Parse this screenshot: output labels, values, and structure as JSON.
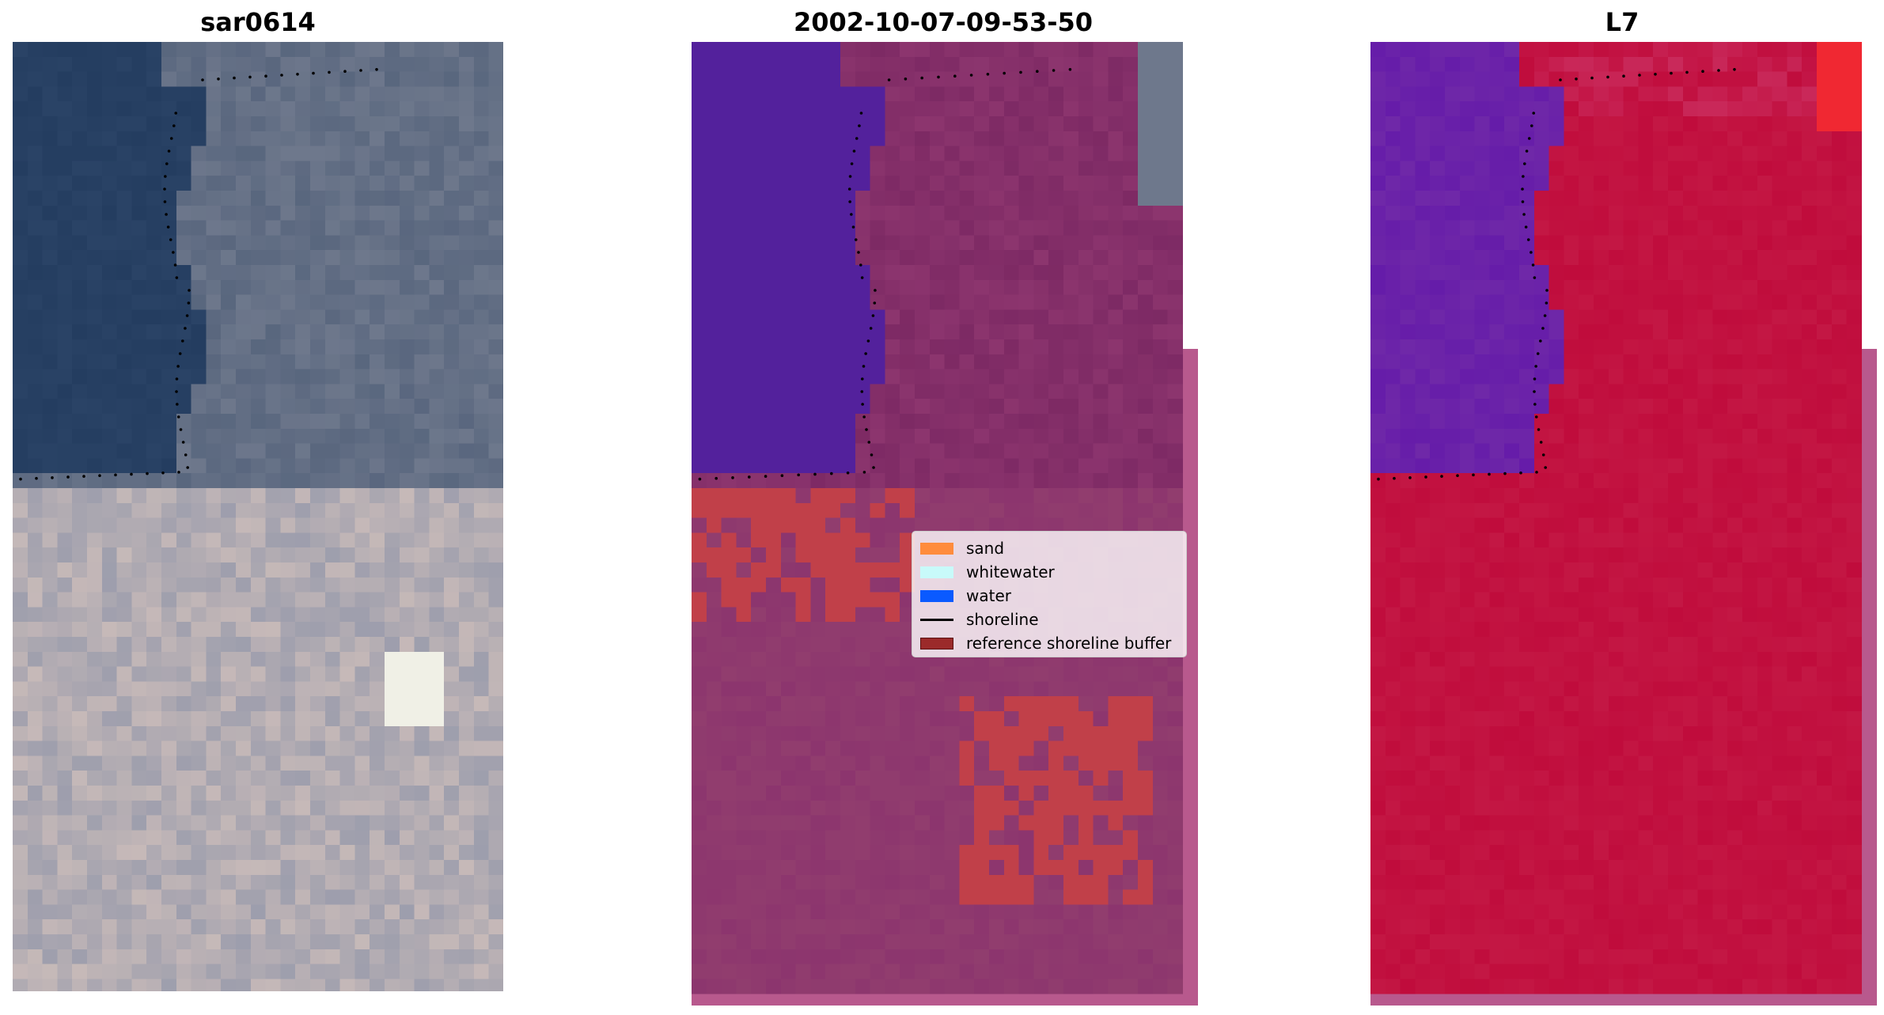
{
  "panels": [
    {
      "title": "sar0614"
    },
    {
      "title": "2002-10-07-09-53-50"
    },
    {
      "title": "L7"
    }
  ],
  "legend": {
    "items": [
      {
        "label": "sand",
        "color": "#ff8c3d"
      },
      {
        "label": "whitewater",
        "color": "#c8fafa"
      },
      {
        "label": "water",
        "color": "#0a5aff"
      },
      {
        "label": "shoreline",
        "color": "#000000"
      },
      {
        "label": "reference shoreline buffer",
        "color": "#9b2a2a"
      }
    ]
  },
  "colors": {
    "rgb_water": "#2a4366",
    "rgb_sand": "#c6b9b8",
    "class_water": "#53219c",
    "class_land": "#8c356e",
    "class_sand": "#c14049",
    "false_color_water": "#6f28a8",
    "false_color_land": "#c00c3c",
    "buffer": "#b8598d"
  }
}
